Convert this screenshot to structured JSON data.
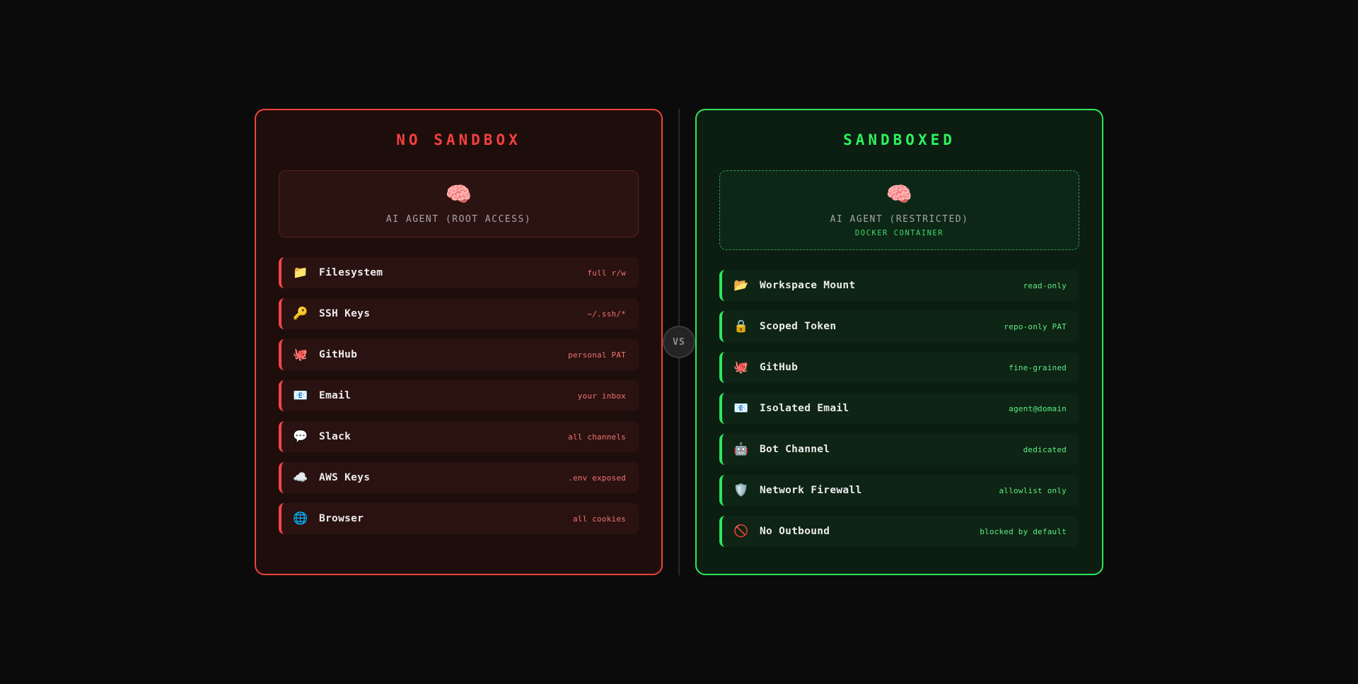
{
  "vs_badge": {
    "label": "VS"
  },
  "colors": {
    "page_background": "#0b0b0b",
    "danger_accent": "#ff4444",
    "danger_border": "#ef4338",
    "danger_title": "#f54040",
    "danger_value": "#f07474",
    "safe_accent": "#2be85c",
    "safe_border": "#2ae75b",
    "safe_title": "#2cf35e",
    "safe_value": "#5ded85",
    "divider": "#2a2a2a"
  },
  "panels": [
    {
      "id": "no-sandbox",
      "title": "NO SANDBOX",
      "agent": {
        "icon": "🧠",
        "icon_name": "brain-icon",
        "name": "AI AGENT (ROOT ACCESS)",
        "sub": ""
      },
      "rows": [
        {
          "icon": "📁",
          "icon_name": "folder-icon",
          "label": "Filesystem",
          "value": "full r/w"
        },
        {
          "icon": "🔑",
          "icon_name": "key-icon",
          "label": "SSH Keys",
          "value": "~/.ssh/*"
        },
        {
          "icon": "🐙",
          "icon_name": "octopus-icon",
          "label": "GitHub",
          "value": "personal PAT"
        },
        {
          "icon": "📧",
          "icon_name": "email-icon",
          "label": "Email",
          "value": "your inbox"
        },
        {
          "icon": "💬",
          "icon_name": "speech-bubble-icon",
          "label": "Slack",
          "value": "all channels"
        },
        {
          "icon": "☁️",
          "icon_name": "cloud-icon",
          "label": "AWS Keys",
          "value": ".env exposed"
        },
        {
          "icon": "🌐",
          "icon_name": "globe-icon",
          "label": "Browser",
          "value": "all cookies"
        }
      ]
    },
    {
      "id": "sandboxed",
      "title": "SANDBOXED",
      "agent": {
        "icon": "🧠",
        "icon_name": "brain-icon",
        "name": "AI AGENT (RESTRICTED)",
        "sub": "DOCKER CONTAINER"
      },
      "rows": [
        {
          "icon": "📂",
          "icon_name": "open-folder-icon",
          "label": "Workspace Mount",
          "value": "read-only"
        },
        {
          "icon": "🔒",
          "icon_name": "lock-icon",
          "label": "Scoped Token",
          "value": "repo-only PAT"
        },
        {
          "icon": "🐙",
          "icon_name": "octopus-icon",
          "label": "GitHub",
          "value": "fine-grained"
        },
        {
          "icon": "📧",
          "icon_name": "email-icon",
          "label": "Isolated Email",
          "value": "agent@domain"
        },
        {
          "icon": "🤖",
          "icon_name": "robot-icon",
          "label": "Bot Channel",
          "value": "dedicated"
        },
        {
          "icon": "🛡️",
          "icon_name": "shield-icon",
          "label": "Network Firewall",
          "value": "allowlist only"
        },
        {
          "icon": "🚫",
          "icon_name": "no-entry-icon",
          "label": "No Outbound",
          "value": "blocked by default"
        }
      ]
    }
  ]
}
